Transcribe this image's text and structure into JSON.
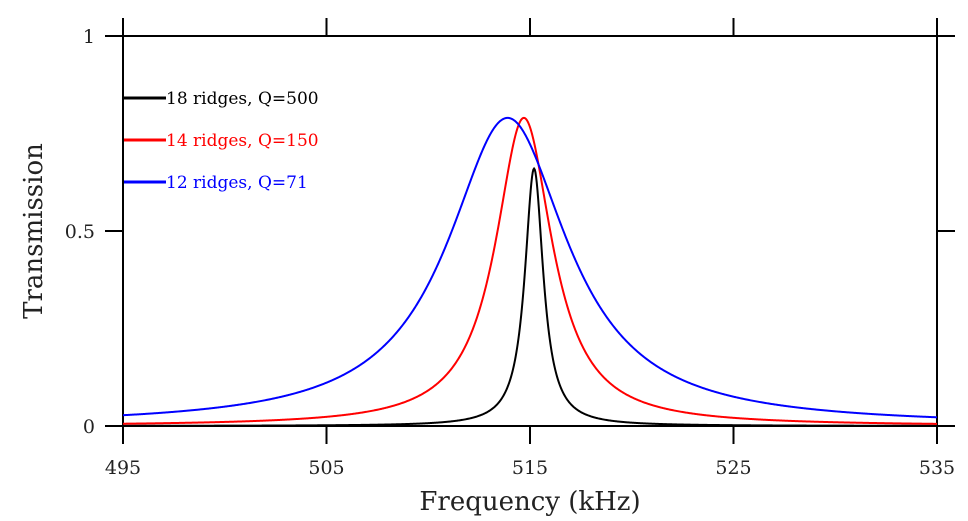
{
  "chart_data": {
    "type": "line",
    "title": "",
    "xlabel": "Frequency (kHz)",
    "ylabel": "Transmission",
    "xlim": [
      495,
      535
    ],
    "ylim": [
      0,
      1
    ],
    "x_ticks": [
      495,
      505,
      515,
      525,
      535
    ],
    "y_ticks": [
      0,
      0.5,
      1
    ],
    "x_tick_labels": [
      "495",
      "505",
      "515",
      "525",
      "535"
    ],
    "y_tick_labels": [
      "0",
      "0.5",
      "1"
    ],
    "grid": false,
    "legend": "top-left",
    "series": [
      {
        "name": "18 ridges, Q=500",
        "color": "#000000",
        "peak_x": 515.2,
        "peak_y": 0.66,
        "half_width": 0.55
      },
      {
        "name": "14 ridges, Q=150",
        "color": "#ff0000",
        "peak_x": 514.7,
        "peak_y": 0.79,
        "half_width": 1.7
      },
      {
        "name": "12 ridges, Q=71",
        "color": "#0000ff",
        "peak_x": 513.9,
        "peak_y": 0.79,
        "half_width": 3.6
      }
    ]
  }
}
